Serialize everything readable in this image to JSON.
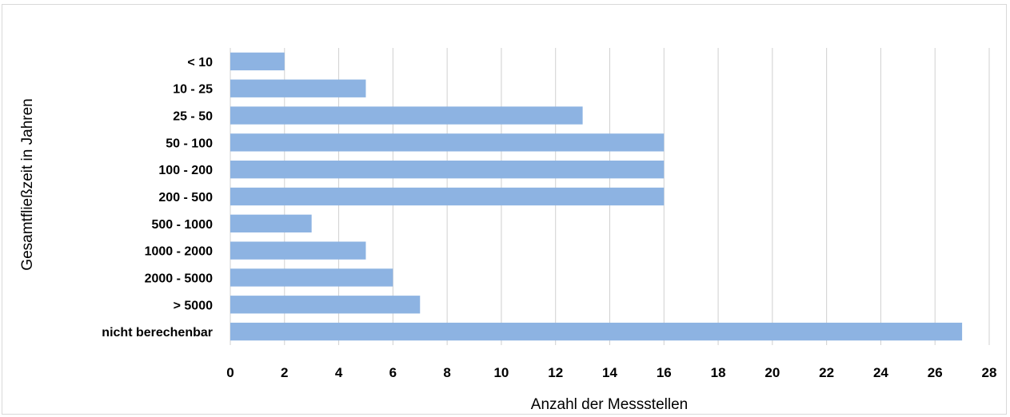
{
  "chart_data": {
    "type": "bar",
    "orientation": "horizontal",
    "title": "",
    "xlabel": "Anzahl der Messstellen",
    "ylabel": "Gesamtfließzeit  in Jahren",
    "categories": [
      "< 10",
      "10 - 25",
      "25 - 50",
      "50 - 100",
      "100 - 200",
      "200 - 500",
      "500 - 1000",
      "1000 - 2000",
      "2000 - 5000",
      "> 5000",
      "nicht berechenbar"
    ],
    "values": [
      2,
      5,
      13,
      16,
      16,
      16,
      3,
      5,
      6,
      7,
      27
    ],
    "xlim": [
      0,
      28
    ],
    "xticks": [
      "0",
      "2",
      "4",
      "6",
      "8",
      "10",
      "12",
      "14",
      "16",
      "18",
      "20",
      "22",
      "24",
      "26",
      "28"
    ],
    "grid": "vertical",
    "legend": "none",
    "colors": {
      "bar": "#8db3e2",
      "grid": "#d0d0d0",
      "border": "#d9d9d9"
    }
  }
}
